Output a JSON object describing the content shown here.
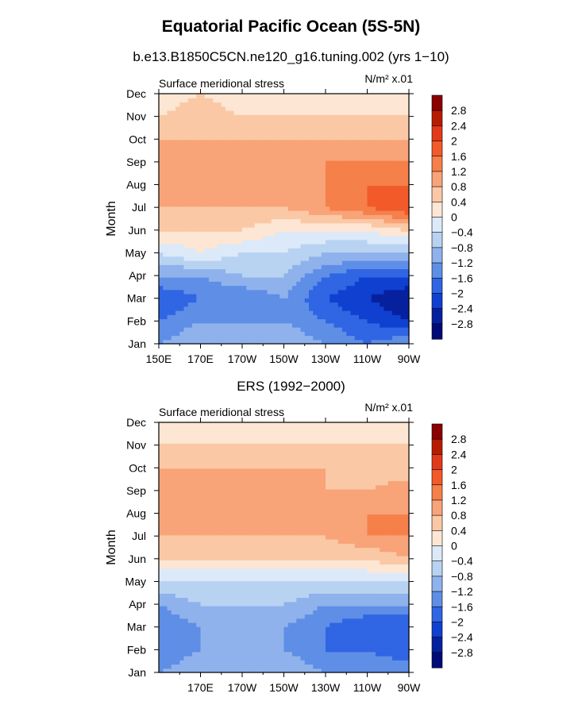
{
  "title": "Equatorial Pacific Ocean (5S-5N)",
  "colorbar": {
    "levels": [
      "2.8",
      "2.4",
      "2",
      "1.6",
      "1.2",
      "0.8",
      "0.4",
      "0",
      "−0.4",
      "−0.8",
      "−1.2",
      "−1.6",
      "−2",
      "−2.4",
      "−2.8"
    ],
    "colors": [
      "#8b0000",
      "#b81c00",
      "#e2391b",
      "#f25a2a",
      "#f5804a",
      "#f8a378",
      "#fbc8a5",
      "#fde6d3",
      "#dce9f8",
      "#b8d2f2",
      "#8fb2ec",
      "#5e8ee6",
      "#3065e3",
      "#1040d0",
      "#06219e",
      "#000b78"
    ]
  },
  "chart_data": [
    {
      "type": "heatmap",
      "title": "b.e13.B1850C5CN.ne120_g16.tuning.002 (yrs 1−10)",
      "subtitle_left": "Surface meridional stress",
      "units": "N/m² x.01",
      "ylabel": "Month",
      "yticks": [
        "Jan",
        "Feb",
        "Mar",
        "Apr",
        "May",
        "Jun",
        "Jul",
        "Aug",
        "Sep",
        "Oct",
        "Nov",
        "Dec"
      ],
      "xticks": [
        "150E",
        "170E",
        "170W",
        "150W",
        "130W",
        "110W",
        "90W"
      ],
      "x_longitude_deg": [
        150,
        170,
        190,
        210,
        230,
        250,
        270
      ],
      "values": [
        [
          -1.2,
          -0.8,
          -0.8,
          -0.8,
          -1.2,
          -1.6,
          -1.2
        ],
        [
          -1.6,
          -1.2,
          -1.2,
          -1.2,
          -1.6,
          -2.0,
          -2.4
        ],
        [
          -2.0,
          -1.6,
          -1.6,
          -1.2,
          -2.0,
          -2.4,
          -2.8
        ],
        [
          -1.2,
          -1.2,
          -0.8,
          -0.8,
          -1.6,
          -2.0,
          -2.0
        ],
        [
          -0.4,
          0.0,
          -0.4,
          -0.4,
          -0.8,
          -0.8,
          -0.8
        ],
        [
          0.4,
          0.4,
          0.4,
          0.0,
          0.0,
          0.0,
          0.4
        ],
        [
          0.8,
          0.8,
          0.8,
          0.8,
          1.2,
          1.6,
          2.0
        ],
        [
          1.2,
          0.8,
          0.8,
          1.0,
          1.2,
          1.6,
          1.6
        ],
        [
          1.2,
          0.8,
          0.8,
          0.8,
          1.2,
          1.2,
          1.2
        ],
        [
          0.8,
          0.8,
          0.8,
          0.8,
          0.8,
          0.8,
          0.8
        ],
        [
          0.4,
          0.8,
          0.4,
          0.4,
          0.4,
          0.4,
          0.4
        ],
        [
          0.0,
          0.4,
          0.0,
          0.0,
          0.0,
          0.0,
          0.0
        ]
      ]
    },
    {
      "type": "heatmap",
      "title": "ERS (1992−2000)",
      "subtitle_left": "Surface meridional stress",
      "units": "N/m² x.01",
      "ylabel": "Month",
      "yticks": [
        "Jan",
        "Feb",
        "Mar",
        "Apr",
        "May",
        "Jun",
        "Jul",
        "Aug",
        "Sep",
        "Oct",
        "Nov",
        "Dec"
      ],
      "xticks": [
        "170E",
        "170W",
        "150W",
        "130W",
        "110W",
        "90W"
      ],
      "x_longitude_deg": [
        150,
        170,
        190,
        210,
        230,
        250,
        270
      ],
      "values": [
        [
          -1.2,
          -0.8,
          -0.8,
          -0.8,
          -1.2,
          -1.2,
          -1.2
        ],
        [
          -1.6,
          -1.2,
          -1.2,
          -1.2,
          -1.6,
          -1.6,
          -2.0
        ],
        [
          -1.6,
          -1.2,
          -1.2,
          -1.2,
          -1.6,
          -2.0,
          -2.0
        ],
        [
          -1.2,
          -0.8,
          -0.8,
          -0.8,
          -1.2,
          -1.2,
          -1.2
        ],
        [
          -0.4,
          -0.4,
          -0.4,
          -0.4,
          -0.4,
          -0.4,
          -0.4
        ],
        [
          0.4,
          0.4,
          0.4,
          0.4,
          0.4,
          0.4,
          0.8
        ],
        [
          0.8,
          0.8,
          0.8,
          0.8,
          0.8,
          1.2,
          1.2
        ],
        [
          0.8,
          0.8,
          0.8,
          0.8,
          0.8,
          1.2,
          1.2
        ],
        [
          1.2,
          0.8,
          0.8,
          1.0,
          0.8,
          0.8,
          1.2
        ],
        [
          0.8,
          0.8,
          0.8,
          0.8,
          0.8,
          0.4,
          0.4
        ],
        [
          0.4,
          0.4,
          0.4,
          0.4,
          0.4,
          0.4,
          0.4
        ],
        [
          0.0,
          0.0,
          0.0,
          0.0,
          0.0,
          0.0,
          0.0
        ]
      ]
    }
  ]
}
